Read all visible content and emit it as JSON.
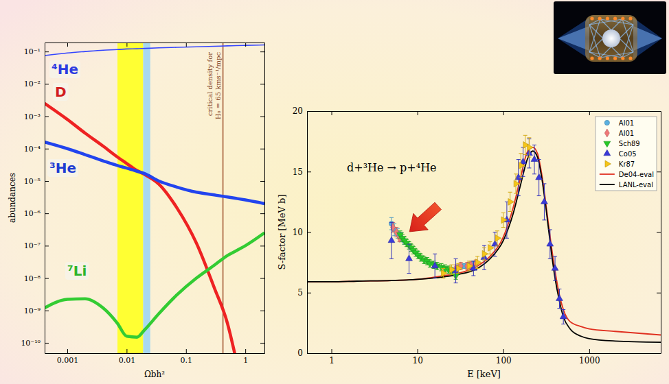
{
  "chart_data": [
    {
      "type": "line",
      "log": true,
      "x_label": "Ωbh²",
      "y_label": "abundances",
      "x": [
        0.000415,
        0.001,
        0.002,
        0.004,
        0.007,
        0.01,
        0.015,
        0.02,
        0.035,
        0.07,
        0.15,
        0.3,
        0.5,
        0.7,
        1,
        2.1
      ],
      "series": [
        {
          "name": "⁴He",
          "color": "#3344ff",
          "values": [
            0.075,
            0.09,
            0.1,
            0.11,
            0.115,
            0.12,
            0.122,
            0.125,
            0.13,
            0.135,
            0.14,
            0.145,
            0.15,
            0.152,
            0.155,
            0.16
          ]
        },
        {
          "name": "D",
          "color": "#ee2222",
          "values": [
            0.0025,
            0.0008,
            0.0003,
            0.00012,
            5.5e-05,
            3.5e-05,
            2.1e-05,
            1.6e-05,
            8e-06,
            1.5e-06,
            1.2e-07,
            5e-09,
            4e-10,
            3e-11,
            null,
            null
          ]
        },
        {
          "name": "³He",
          "color": "#2244ee",
          "values": [
            0.00016,
            0.0001,
            6.5e-05,
            4.2e-05,
            3e-05,
            2.5e-05,
            2e-05,
            1.7e-05,
            1e-05,
            6.5e-06,
            4.5e-06,
            3.7e-06,
            3.2e-06,
            2.9e-06,
            2.6e-06,
            2e-06
          ]
        },
        {
          "name": "⁷Li",
          "color": "#33cc33",
          "values": [
            1.2e-09,
            2.2e-09,
            2.3e-09,
            1.2e-09,
            4e-10,
            1.6e-10,
            1.5e-10,
            2.5e-10,
            8e-10,
            3e-09,
            1e-08,
            2.5e-08,
            5e-08,
            7e-08,
            1e-07,
            2.5e-07
          ]
        }
      ],
      "xlim": [
        0.000415,
        2.1
      ],
      "ylim": [
        4.8e-11,
        0.19
      ],
      "xticks": [
        0.001,
        0.01,
        0.1,
        1
      ],
      "yticks": [
        {
          "value": 0.1,
          "label": "10⁻¹"
        },
        {
          "value": 0.01,
          "label": "10⁻²"
        },
        {
          "value": 0.001,
          "label": "10⁻³"
        },
        {
          "value": 0.0001,
          "label": "10⁻⁴"
        },
        {
          "value": 1e-05,
          "label": "10⁻⁵"
        },
        {
          "value": 1e-06,
          "label": "10⁻⁶"
        },
        {
          "value": 1e-07,
          "label": "10⁻⁷"
        },
        {
          "value": 1e-08,
          "label": "10⁻⁸"
        },
        {
          "value": 1e-09,
          "label": "10⁻⁹"
        },
        {
          "value": 1e-10,
          "label": "10⁻¹⁰"
        }
      ],
      "bands": [
        {
          "from": 0.007,
          "to": 0.019,
          "color": "#ffff33"
        },
        {
          "from": 0.019,
          "to": 0.025,
          "color": "#a8d8f0"
        }
      ],
      "vline": {
        "value": 0.42,
        "color": "#a0522d",
        "text": [
          "critical density for",
          "H₀ = 65 kms⁻¹/mpc"
        ]
      }
    },
    {
      "type": "scatter",
      "log": "x",
      "title": "d+³He → p+⁴He",
      "x_label": "E [keV]",
      "y_label": "S-factor [MeV b]",
      "legend": "upper right",
      "xlim": [
        0.52,
        6800
      ],
      "ylim": [
        0,
        20
      ],
      "xticks": [
        1,
        10,
        100,
        1000
      ],
      "yticks": [
        0,
        5,
        10,
        15,
        20
      ],
      "series": [
        {
          "name": "Al01",
          "type": "scatter",
          "marker": "circle",
          "color": "#5ab0e0",
          "x": [
            5.0,
            5.4,
            5.9,
            6.4,
            7.0,
            30,
            35,
            40,
            45
          ],
          "values": [
            10.7,
            10.2,
            9.9,
            9.6,
            9.3,
            7.1,
            7.2,
            7.3,
            7.4
          ],
          "errors": [
            0.5,
            0.5,
            0.4,
            0.4,
            0.3,
            0.2,
            0.2,
            0.2,
            0.2
          ]
        },
        {
          "name": "Al01",
          "type": "scatter",
          "marker": "diamond",
          "color": "#f07878",
          "x": [
            5.2,
            5.7,
            6.2,
            28,
            32,
            38,
            42,
            48
          ],
          "values": [
            10.4,
            10.0,
            9.5,
            7.0,
            7.2,
            7.2,
            7.3,
            7.4
          ],
          "errors": [
            0.4,
            0.4,
            0.3,
            0.3,
            0.3,
            0.3,
            0.3,
            0.3
          ]
        },
        {
          "name": "Sch89",
          "type": "scatter",
          "marker": "triangle-down",
          "color": "#28c828",
          "x": [
            6.3,
            6.7,
            7.1,
            7.5,
            8,
            8.5,
            9,
            9.6,
            10.2,
            11,
            12,
            13,
            14,
            15.5,
            17,
            19,
            21,
            23,
            25,
            28
          ],
          "values": [
            9.8,
            9.5,
            9.3,
            9.1,
            8.9,
            8.7,
            8.5,
            8.3,
            8.1,
            7.9,
            7.7,
            7.6,
            7.4,
            7.3,
            7.2,
            7.1,
            7.0,
            6.9,
            6.8,
            6.4
          ],
          "errors": [
            0.3,
            0.3,
            0.3,
            0.3,
            0.3,
            0.3,
            0.3,
            0.3,
            0.3,
            0.3,
            0.3,
            0.3,
            0.3,
            0.3,
            0.3,
            0.3,
            0.3,
            0.3,
            0.3,
            0.3
          ]
        },
        {
          "name": "Co05",
          "type": "scatter",
          "marker": "triangle-up",
          "color": "#3a3ad8",
          "x": [
            5.0,
            8,
            16,
            28,
            45,
            60,
            80,
            110,
            150,
            170,
            200,
            230,
            260,
            300,
            350,
            400,
            450,
            500
          ],
          "values": [
            9.3,
            7.8,
            7.2,
            6.8,
            7.0,
            7.9,
            9.0,
            11.0,
            14.5,
            15.8,
            16.5,
            16.0,
            14.5,
            12.5,
            9.0,
            7.0,
            4.5,
            3.0
          ],
          "errors": [
            1.5,
            1.2,
            1.0,
            1.0,
            0.6,
            1.0,
            1.0,
            1.5,
            1.5,
            1.2,
            1.2,
            1.2,
            1.5,
            1.5,
            1.2,
            1.0,
            0.8,
            0.6
          ]
        },
        {
          "name": "Kr87",
          "type": "scatter",
          "marker": "triangle-right",
          "color": "#f5c518",
          "x": [
            20,
            25,
            30,
            40,
            50,
            60,
            70,
            85,
            100,
            120,
            140,
            160,
            180,
            200
          ],
          "values": [
            6.6,
            6.9,
            7.0,
            7.2,
            7.5,
            8.2,
            8.7,
            9.5,
            11.0,
            12.5,
            14.0,
            15.5,
            17.2,
            17.0
          ],
          "errors": [
            0.4,
            0.4,
            0.4,
            0.4,
            0.5,
            0.5,
            0.5,
            0.6,
            0.6,
            0.8,
            0.8,
            1.0,
            0.8,
            0.8
          ]
        },
        {
          "name": "De04-eval",
          "type": "line",
          "line_style": "solid",
          "color": "#e03020",
          "x": [
            0.52,
            1,
            2,
            5,
            10,
            20,
            30,
            50,
            70,
            100,
            130,
            160,
            190,
            220,
            250,
            280,
            320,
            360,
            400,
            450,
            500,
            600,
            800,
            1000,
            2000,
            6800
          ],
          "values": [
            5.9,
            5.9,
            5.95,
            6.0,
            6.1,
            6.4,
            6.6,
            7.2,
            8.0,
            9.6,
            12.0,
            14.6,
            16.6,
            17.0,
            16.5,
            14.8,
            11.8,
            9.0,
            6.8,
            4.8,
            3.6,
            2.6,
            2.2,
            2.0,
            1.8,
            1.5
          ]
        },
        {
          "name": "LANL-eval",
          "type": "line",
          "line_style": "solid",
          "color": "#000000",
          "x": [
            0.52,
            1,
            2,
            5,
            10,
            20,
            30,
            50,
            70,
            100,
            130,
            160,
            190,
            220,
            250,
            280,
            320,
            360,
            400,
            450,
            500,
            600,
            800,
            1000,
            2000,
            6800
          ],
          "values": [
            5.9,
            5.9,
            5.95,
            6.0,
            6.1,
            6.3,
            6.5,
            7.0,
            7.8,
            9.3,
            11.5,
            14.0,
            16.0,
            16.7,
            16.2,
            14.5,
            11.5,
            8.5,
            6.2,
            4.3,
            3.0,
            2.0,
            1.4,
            1.2,
            1.0,
            0.9
          ]
        }
      ]
    }
  ]
}
